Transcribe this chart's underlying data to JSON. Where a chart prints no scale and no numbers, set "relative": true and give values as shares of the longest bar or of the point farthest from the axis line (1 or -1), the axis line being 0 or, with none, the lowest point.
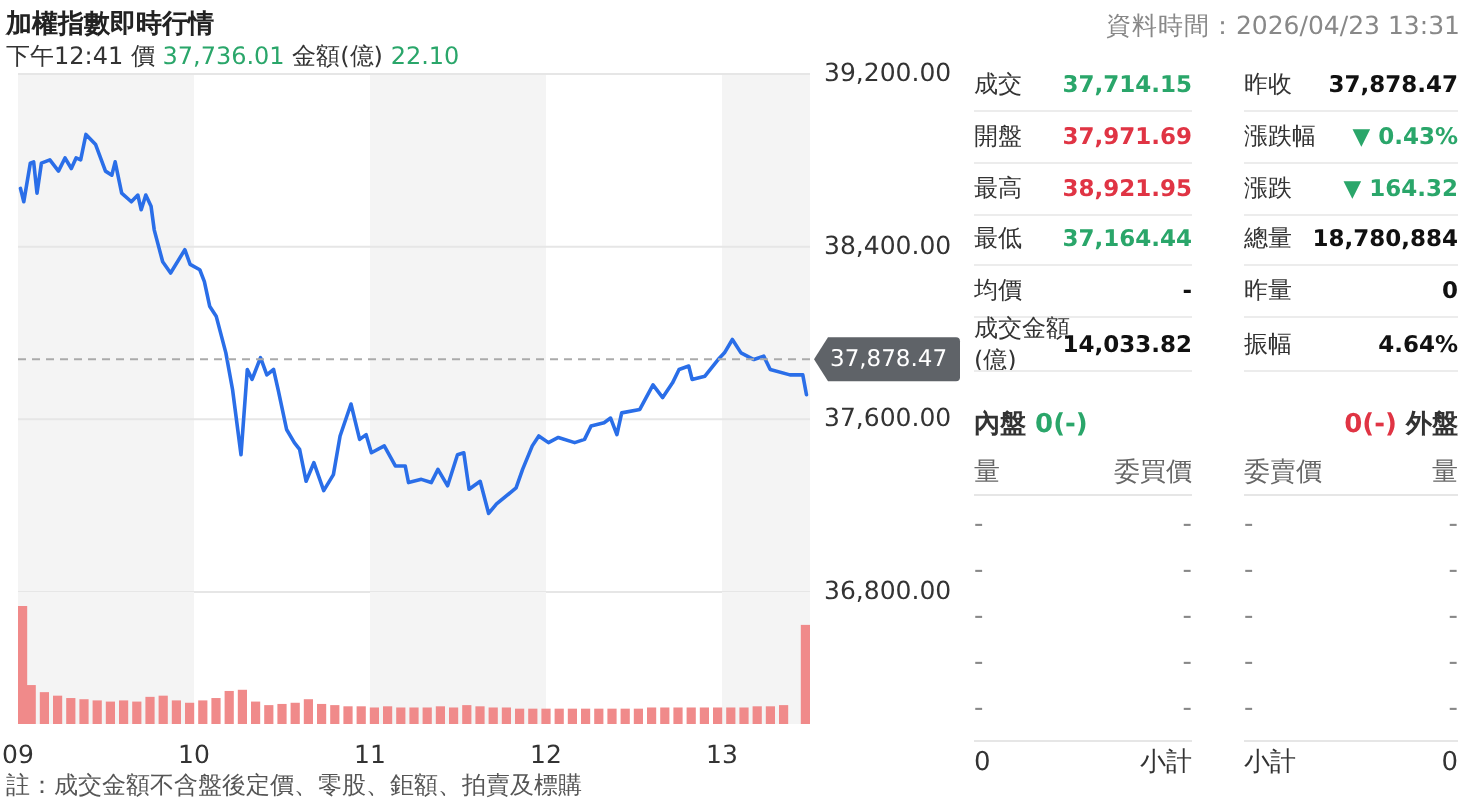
{
  "chart_data": [
    {
      "type": "line",
      "title": "加權指數即時行情",
      "annotations": [
        "下午12:41",
        "價",
        "37,736.01",
        "金額(億)",
        "22.10",
        "註：成交金額不含盤後定價、零股、鉅額、拍賣及標購"
      ],
      "x": [
        9.014,
        9.033,
        9.07,
        9.089,
        9.108,
        9.133,
        9.181,
        9.23,
        9.267,
        9.303,
        9.33,
        9.356,
        9.386,
        9.441,
        9.497,
        9.533,
        9.552,
        9.589,
        9.644,
        9.681,
        9.7,
        9.726,
        9.756,
        9.774,
        9.822,
        9.867,
        9.948,
        9.978,
        10.033,
        10.059,
        10.089,
        10.126,
        10.181,
        10.219,
        10.267,
        10.303,
        10.33,
        10.378,
        10.414,
        10.452,
        10.478,
        10.526,
        10.57,
        10.6,
        10.637,
        10.681,
        10.737,
        10.792,
        10.83,
        10.892,
        10.941,
        10.978,
        11.008,
        11.081,
        11.144,
        11.2,
        11.219,
        11.292,
        11.348,
        11.386,
        11.441,
        11.497,
        11.533,
        11.563,
        11.626,
        11.674,
        11.719,
        11.83,
        11.867,
        11.922,
        11.959,
        12.014,
        12.07,
        12.163,
        12.219,
        12.256,
        12.33,
        12.367,
        12.403,
        12.43,
        12.533,
        12.608,
        12.663,
        12.719,
        12.756,
        12.811,
        12.83,
        12.903,
        12.978,
        13.014,
        13.059,
        13.108,
        13.181,
        13.237,
        13.274,
        13.386,
        13.459,
        13.48
      ],
      "series": [
        {
          "color": "#2a6ee8",
          "values": [
            38670,
            38608,
            38787,
            38793,
            38648,
            38787,
            38802,
            38750,
            38811,
            38762,
            38811,
            38802,
            38920,
            38873,
            38750,
            38731,
            38793,
            38648,
            38608,
            38639,
            38571,
            38639,
            38587,
            38478,
            38330,
            38278,
            38386,
            38318,
            38293,
            38238,
            38124,
            38078,
            37908,
            37738,
            37436,
            37831,
            37785,
            37886,
            37806,
            37831,
            37738,
            37553,
            37492,
            37461,
            37313,
            37399,
            37270,
            37344,
            37523,
            37671,
            37507,
            37529,
            37445,
            37477,
            37384,
            37384,
            37307,
            37322,
            37307,
            37368,
            37292,
            37436,
            37445,
            37276,
            37313,
            37164,
            37208,
            37282,
            37368,
            37477,
            37523,
            37492,
            37516,
            37492,
            37507,
            37569,
            37584,
            37606,
            37529,
            37630,
            37646,
            37760,
            37701,
            37769,
            37831,
            37847,
            37785,
            37800,
            37877,
            37908,
            37970,
            37908,
            37877,
            37893,
            37831,
            37806,
            37806,
            37714
          ]
        }
      ],
      "xlim": [
        9,
        13.5
      ],
      "ylim": [
        36800,
        39200
      ],
      "yticks": [
        {
          "value": 39200,
          "label": "39,200.00"
        },
        {
          "value": 38400,
          "label": "38,400.00"
        },
        {
          "value": 37600,
          "label": "37,600.00"
        },
        {
          "value": 36800,
          "label": "36,800.00"
        }
      ],
      "grid": "y",
      "tick_labels": "y",
      "ref_lines": [
        {
          "axis": "y",
          "value": 37878.47,
          "label": "37,878.47",
          "color": "#aaaaaa",
          "line_style": "dashed"
        }
      ],
      "bands": [
        {
          "axis": "x",
          "from": 9,
          "to": 10,
          "color": "#f4f4f4"
        },
        {
          "axis": "x",
          "from": 11,
          "to": 12,
          "color": "#f4f4f4"
        },
        {
          "axis": "x",
          "from": 13,
          "to": 13.5,
          "color": "#f4f4f4"
        }
      ]
    },
    {
      "type": "bar",
      "relative": true,
      "color": "#f08a8a",
      "x": [
        9,
        9.075,
        9.15,
        9.225,
        9.3,
        9.375,
        9.45,
        9.525,
        9.6,
        9.675,
        9.75,
        9.825,
        9.9,
        9.975,
        10.05,
        10.125,
        10.2,
        10.275,
        10.35,
        10.425,
        10.5,
        10.575,
        10.65,
        10.725,
        10.8,
        10.875,
        10.95,
        11.025,
        11.1,
        11.175,
        11.25,
        11.325,
        11.4,
        11.475,
        11.55,
        11.625,
        11.7,
        11.775,
        11.85,
        11.925,
        12,
        12.075,
        12.15,
        12.225,
        12.3,
        12.375,
        12.45,
        12.525,
        12.6,
        12.675,
        12.75,
        12.825,
        12.9,
        12.975,
        13.05,
        13.125,
        13.2,
        13.275,
        13.35,
        13.48
      ],
      "values": [
        1.0,
        0.33,
        0.27,
        0.24,
        0.22,
        0.21,
        0.2,
        0.19,
        0.2,
        0.19,
        0.23,
        0.24,
        0.2,
        0.18,
        0.2,
        0.22,
        0.28,
        0.29,
        0.19,
        0.16,
        0.17,
        0.18,
        0.21,
        0.17,
        0.16,
        0.15,
        0.15,
        0.14,
        0.15,
        0.14,
        0.14,
        0.14,
        0.15,
        0.14,
        0.16,
        0.15,
        0.14,
        0.14,
        0.13,
        0.13,
        0.13,
        0.13,
        0.13,
        0.13,
        0.13,
        0.13,
        0.13,
        0.13,
        0.14,
        0.14,
        0.14,
        0.14,
        0.14,
        0.14,
        0.14,
        0.14,
        0.15,
        0.15,
        0.16,
        0.84
      ],
      "xlim": [
        9,
        13.5
      ],
      "xticks": [
        {
          "value": 9,
          "label": "09"
        },
        10,
        11,
        12,
        13
      ],
      "tick_labels": "x",
      "bands": [
        {
          "axis": "x",
          "from": 9,
          "to": 10,
          "color": "#f4f4f4"
        },
        {
          "axis": "x",
          "from": 11,
          "to": 12,
          "color": "#f4f4f4"
        },
        {
          "axis": "x",
          "from": 13,
          "to": 13.5,
          "color": "#f4f4f4"
        }
      ]
    },
    {
      "type": "other",
      "title": "資料時間：2026/04/23 13:31",
      "categories": [
        "成交",
        "昨收",
        "開盤",
        "漲跌幅",
        "最高",
        "漲跌",
        "最低",
        "總量",
        "均價",
        "昨量",
        "成交金額(億)",
        "振幅"
      ],
      "value_labels": [
        "37,714.15",
        "37,878.47",
        "37,971.69",
        "▼ 0.43%",
        "38,921.95",
        "▼ 164.32",
        "37,164.44",
        "18,780,884",
        "-",
        "0",
        "14,033.82",
        "4.64%"
      ],
      "colors": [
        "#2aa66a",
        "#111111",
        "#e03444",
        "#2aa66a",
        "#e03444",
        "#2aa66a",
        "#2aa66a",
        "#111111",
        "#111111",
        "#111111",
        "#111111",
        "#111111"
      ]
    },
    {
      "type": "other",
      "annotations": [
        "內盤",
        "0(-)",
        "0(-)",
        "外盤"
      ],
      "categories": [
        "量",
        "委買價",
        "委賣價",
        "量"
      ],
      "cell_labels": [
        [
          "-",
          "-",
          "-",
          "-"
        ],
        [
          "-",
          "-",
          "-",
          "-"
        ],
        [
          "-",
          "-",
          "-",
          "-"
        ],
        [
          "-",
          "-",
          "-",
          "-"
        ],
        [
          "-",
          "-",
          "-",
          "-"
        ],
        [
          "0",
          "小計",
          "小計",
          "0"
        ]
      ]
    }
  ]
}
